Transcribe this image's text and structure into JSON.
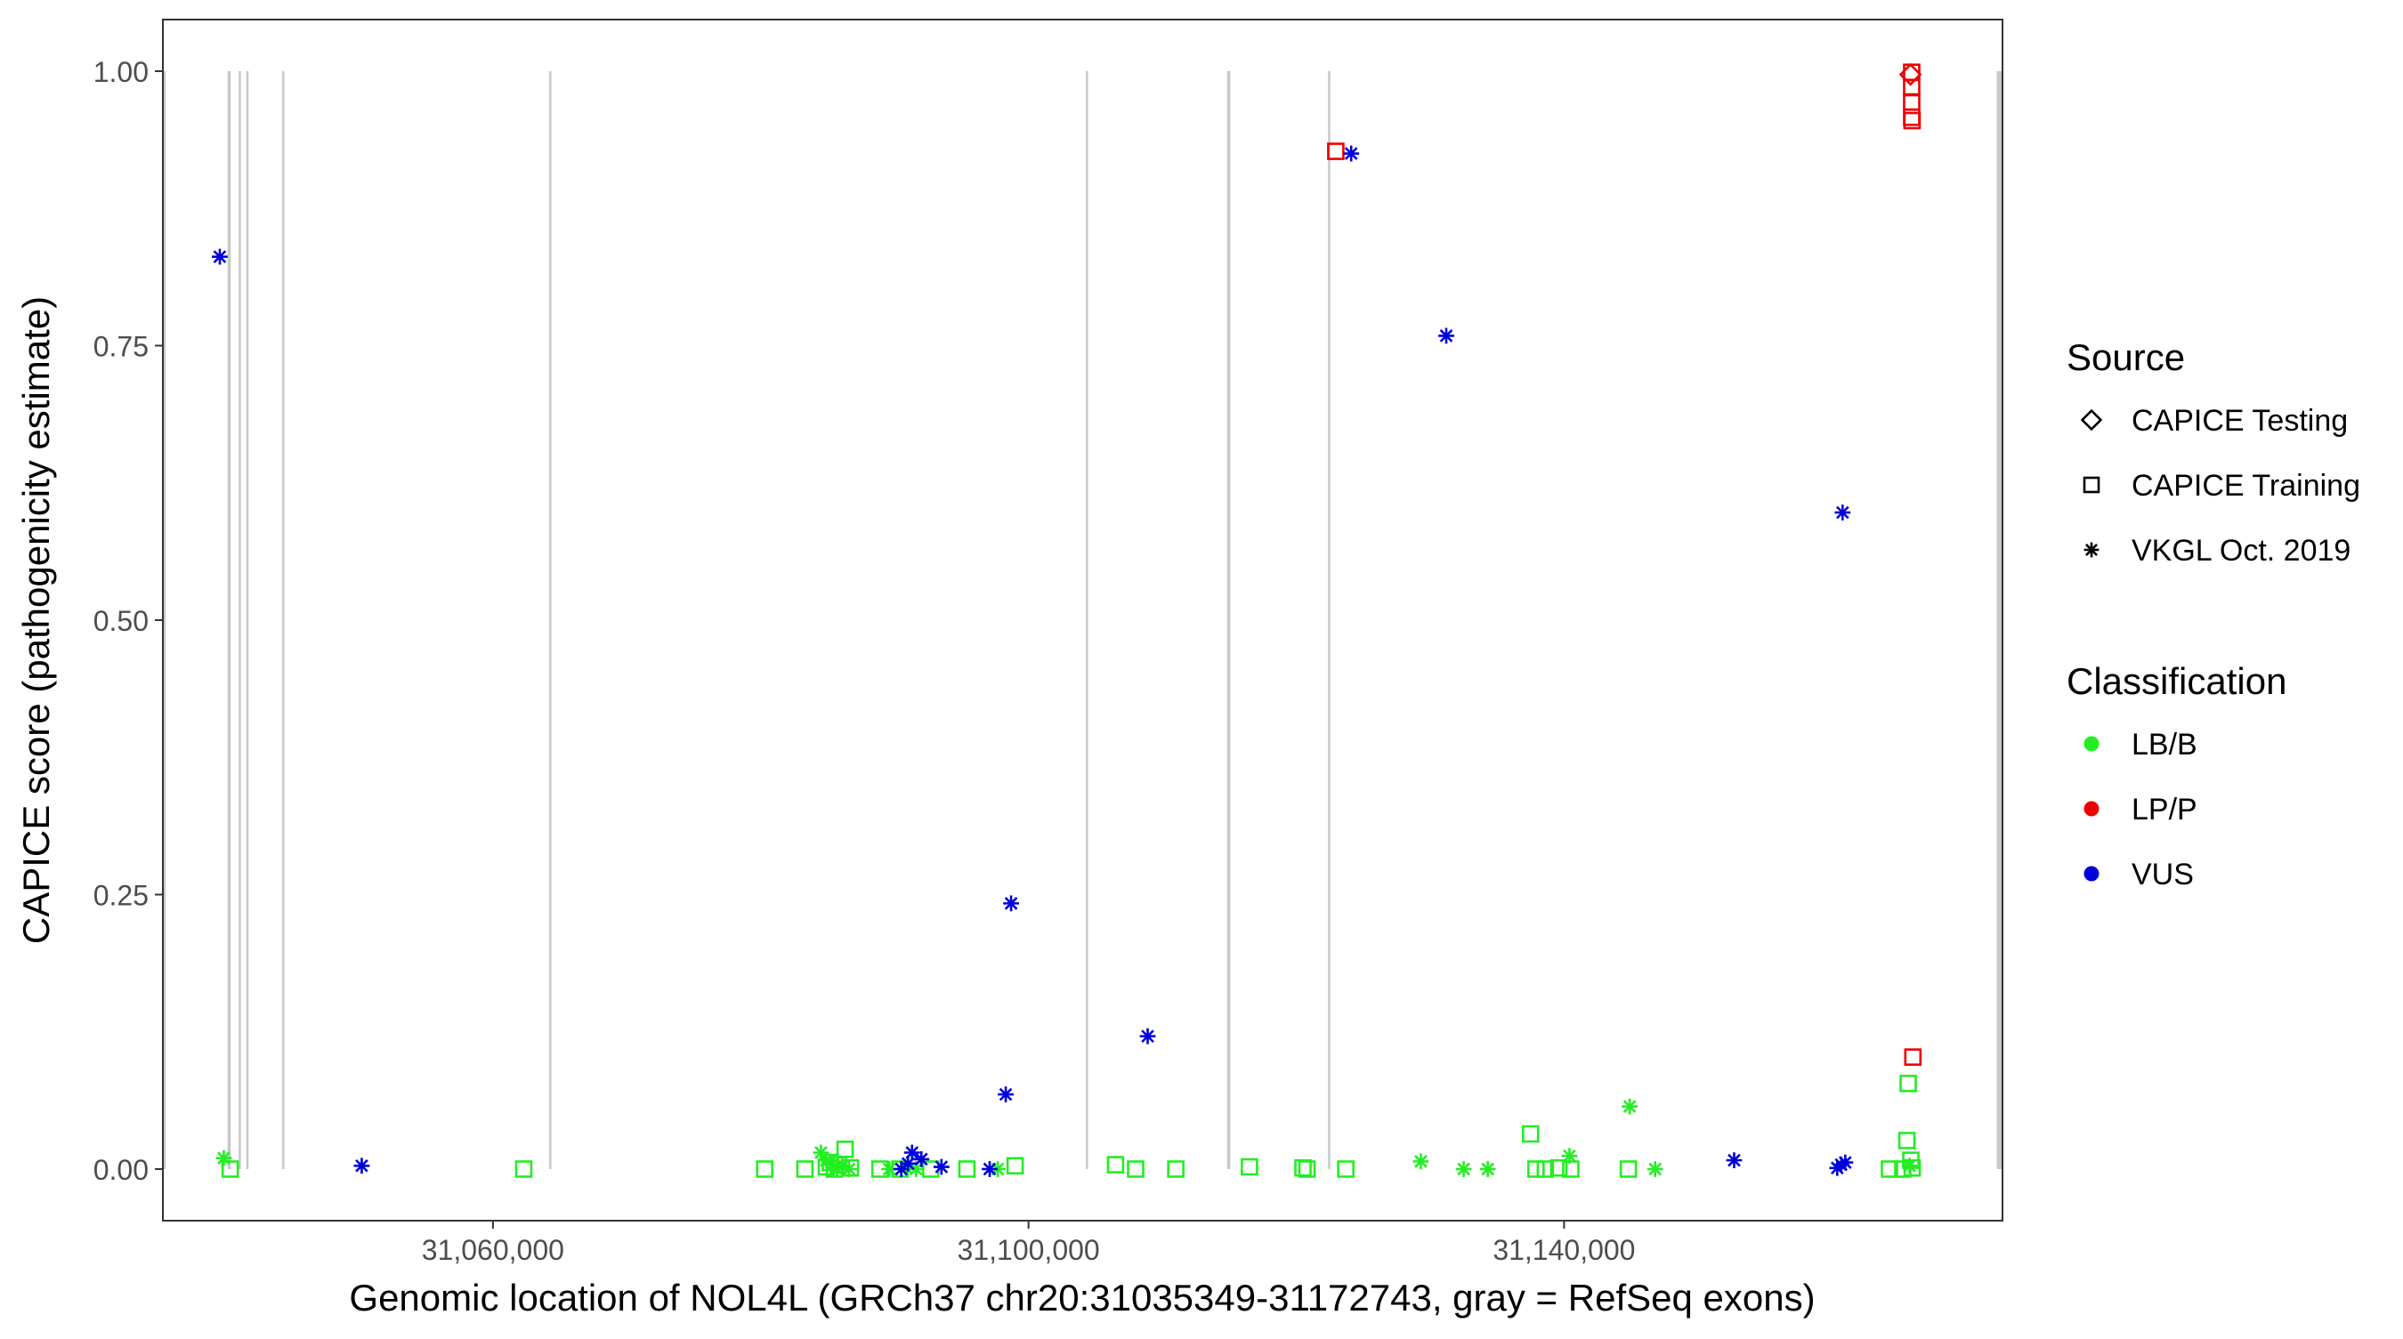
{
  "chart_data": {
    "type": "scatter",
    "title": "",
    "xlabel": "Genomic location of NOL4L (GRCh37 chr20:31035349-31172743, gray = RefSeq exons)",
    "ylabel": "CAPICE score (pathogenicity estimate)",
    "xlim": [
      31035349,
      31172743
    ],
    "ylim": [
      -0.047,
      1.047
    ],
    "x_ticks": [
      31060000,
      31100000,
      31140000
    ],
    "x_tick_labels": [
      "31,060,000",
      "31,100,000",
      "31,140,000"
    ],
    "y_ticks": [
      0,
      0.25,
      0.5,
      0.75,
      1
    ],
    "y_tick_labels": [
      "0.00",
      "0.25",
      "0.50",
      "0.75",
      "1.00"
    ],
    "grid": false,
    "exon_color": "#c8c8c8",
    "exons": [
      {
        "start": 31035360,
        "end": 31035560
      },
      {
        "start": 31040180,
        "end": 31040420
      },
      {
        "start": 31041010,
        "end": 31041150
      },
      {
        "start": 31041580,
        "end": 31041740
      },
      {
        "start": 31044260,
        "end": 31044400
      },
      {
        "start": 31064200,
        "end": 31064320
      },
      {
        "start": 31104280,
        "end": 31104400
      },
      {
        "start": 31114830,
        "end": 31115070
      },
      {
        "start": 31122370,
        "end": 31122490
      },
      {
        "start": 31172310,
        "end": 31172730
      }
    ],
    "legend": {
      "position": "right",
      "source_title": "Source",
      "source_items": [
        {
          "label": "CAPICE Testing",
          "shape": "diamond"
        },
        {
          "label": "CAPICE Training",
          "shape": "square"
        },
        {
          "label": "VKGL Oct. 2019",
          "shape": "asterisk"
        }
      ],
      "class_title": "Classification",
      "class_items": [
        {
          "label": "LB/B",
          "color": "#22ee22"
        },
        {
          "label": "LP/P",
          "color": "#ee0000"
        },
        {
          "label": "VUS",
          "color": "#0000dd"
        }
      ]
    },
    "series": [
      {
        "source": "CAPICE Testing",
        "classification": "LP/P",
        "shape": "diamond",
        "color": "#ee0000",
        "points": [
          [
            31165870,
            0.997
          ]
        ]
      },
      {
        "source": "CAPICE Training",
        "classification": "LP/P",
        "shape": "square",
        "color": "#ee0000",
        "points": [
          [
            31122950,
            0.927
          ],
          [
            31165960,
            0.999
          ],
          [
            31165960,
            0.985
          ],
          [
            31165960,
            0.972
          ],
          [
            31165960,
            0.958
          ],
          [
            31165990,
            0.955
          ],
          [
            31166050,
            0.102
          ]
        ]
      },
      {
        "source": "CAPICE Training",
        "classification": "LB/B",
        "shape": "square",
        "color": "#22ee22",
        "points": [
          [
            31040380,
            0.0
          ],
          [
            31062300,
            0.0
          ],
          [
            31080300,
            0.0
          ],
          [
            31083300,
            0.0
          ],
          [
            31084900,
            0.002
          ],
          [
            31085200,
            0.006
          ],
          [
            31085500,
            0.0
          ],
          [
            31085800,
            0.004
          ],
          [
            31086300,
            0.018
          ],
          [
            31086700,
            0.001
          ],
          [
            31088900,
            0.0
          ],
          [
            31090400,
            0.0
          ],
          [
            31092700,
            0.0
          ],
          [
            31095400,
            0.0
          ],
          [
            31099000,
            0.003
          ],
          [
            31106500,
            0.004
          ],
          [
            31108000,
            0.0
          ],
          [
            31111000,
            0.0
          ],
          [
            31116500,
            0.002
          ],
          [
            31120500,
            0.001
          ],
          [
            31120800,
            0.0
          ],
          [
            31123700,
            0.0
          ],
          [
            31137500,
            0.032
          ],
          [
            31137900,
            0.0
          ],
          [
            31138600,
            0.0
          ],
          [
            31139600,
            0.001
          ],
          [
            31140500,
            0.0
          ],
          [
            31144800,
            0.0
          ],
          [
            31164300,
            0.0
          ],
          [
            31165300,
            0.0
          ],
          [
            31165600,
            0.026
          ],
          [
            31165700,
            0.078
          ],
          [
            31165900,
            0.008
          ],
          [
            31166000,
            0.001
          ]
        ]
      },
      {
        "source": "VKGL Oct. 2019",
        "classification": "LB/B",
        "shape": "asterisk",
        "color": "#22ee22",
        "points": [
          [
            31039900,
            0.01
          ],
          [
            31084500,
            0.015
          ],
          [
            31084900,
            0.008
          ],
          [
            31085300,
            0.004
          ],
          [
            31085700,
            0.0
          ],
          [
            31086100,
            0.003
          ],
          [
            31086600,
            0.0
          ],
          [
            31089600,
            0.0
          ],
          [
            31090800,
            0.002
          ],
          [
            31091600,
            0.0
          ],
          [
            31097700,
            0.0
          ],
          [
            31129300,
            0.007
          ],
          [
            31132500,
            0.0
          ],
          [
            31134300,
            0.0
          ],
          [
            31140400,
            0.012
          ],
          [
            31144900,
            0.057
          ],
          [
            31146800,
            0.0
          ],
          [
            31165800,
            0.003
          ]
        ]
      },
      {
        "source": "VKGL Oct. 2019",
        "classification": "VUS",
        "shape": "asterisk",
        "color": "#0000dd",
        "points": [
          [
            31039600,
            0.831
          ],
          [
            31050200,
            0.003
          ],
          [
            31090500,
            0.0
          ],
          [
            31091000,
            0.005
          ],
          [
            31091300,
            0.015
          ],
          [
            31092000,
            0.009
          ],
          [
            31093500,
            0.002
          ],
          [
            31097100,
            0.0
          ],
          [
            31098300,
            0.068
          ],
          [
            31098700,
            0.242
          ],
          [
            31108900,
            0.121
          ],
          [
            31124100,
            0.925
          ],
          [
            31131200,
            0.759
          ],
          [
            31152700,
            0.008
          ],
          [
            31160400,
            0.001
          ],
          [
            31160700,
            0.004
          ],
          [
            31161000,
            0.006
          ],
          [
            31160800,
            0.598
          ]
        ]
      }
    ]
  }
}
